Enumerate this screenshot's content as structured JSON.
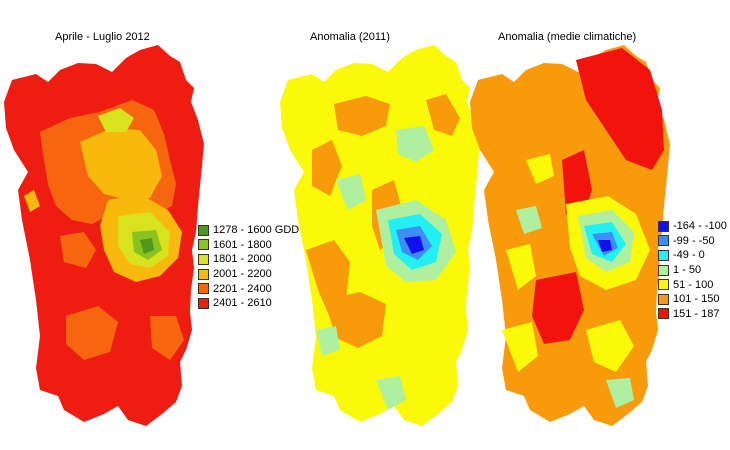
{
  "panels": [
    {
      "title": "Aprile - Luglio 2012",
      "legend": [
        {
          "label": "1278 - 1600 GDD",
          "color": "#4d9a1a"
        },
        {
          "label": "1601 - 1800",
          "color": "#8cc220"
        },
        {
          "label": "1801 - 2000",
          "color": "#d8e21e"
        },
        {
          "label": "2001 - 2200",
          "color": "#f7b90b"
        },
        {
          "label": "2201 - 2400",
          "color": "#f5660f"
        },
        {
          "label": "2401 - 2610",
          "color": "#ef1d11"
        }
      ]
    },
    {
      "title": "Anomalia (2011)"
    },
    {
      "title": "Anomalia (medie climatiche)",
      "legend": [
        {
          "label": "-164 - -100",
          "color": "#1010f0"
        },
        {
          "label": "-99 - -50",
          "color": "#3f8ef5"
        },
        {
          "label": "-49 - 0",
          "color": "#22f0f2"
        },
        {
          "label": "1 - 50",
          "color": "#aef0a0"
        },
        {
          "label": "51 - 100",
          "color": "#fafa08"
        },
        {
          "label": "101 - 150",
          "color": "#f79a0c"
        },
        {
          "label": "151 - 187",
          "color": "#f2120e"
        }
      ]
    }
  ]
}
